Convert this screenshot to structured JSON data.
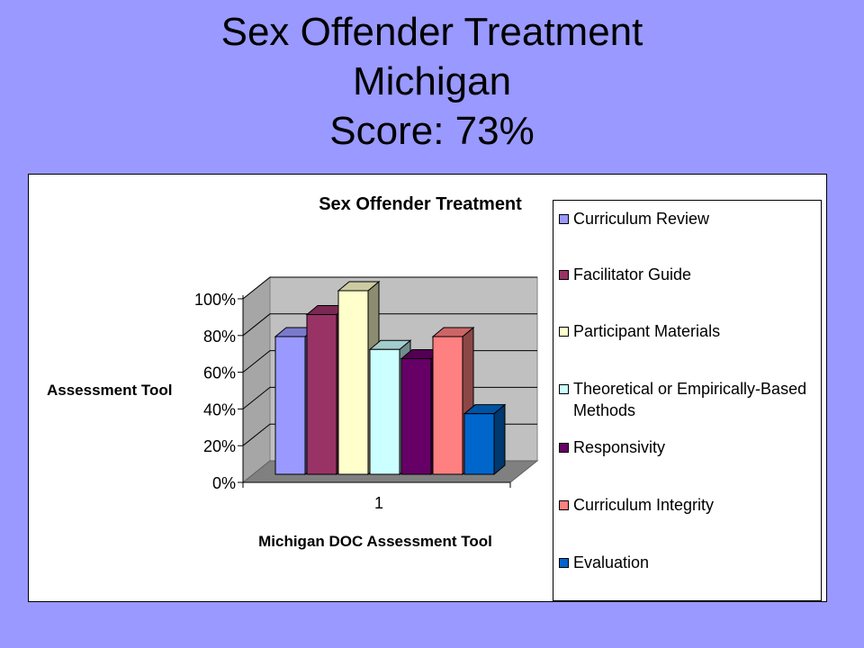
{
  "slide": {
    "title_line1": "Sex Offender Treatment",
    "title_line2": "Michigan",
    "title_line3": "Score: 73%"
  },
  "chart_data": {
    "type": "bar",
    "title": "Sex Offender Treatment",
    "xlabel": "Michigan DOC Assessment Tool",
    "ylabel": "Assessment Tool",
    "categories": [
      "1"
    ],
    "ylim": [
      0,
      1
    ],
    "yticks": [
      "0%",
      "20%",
      "40%",
      "60%",
      "80%",
      "100%"
    ],
    "grid": true,
    "three_d": true,
    "legend_position": "right",
    "series": [
      {
        "name": "Curriculum Review",
        "values": [
          0.75
        ],
        "color": "#9999ff"
      },
      {
        "name": "Facilitator Guide",
        "values": [
          0.87
        ],
        "color": "#993366"
      },
      {
        "name": "Participant Materials",
        "values": [
          1.0
        ],
        "color": "#ffffcc"
      },
      {
        "name": "Theoretical or Empirically-Based Methods",
        "values": [
          0.68
        ],
        "color": "#ccffff"
      },
      {
        "name": "Responsivity",
        "values": [
          0.63
        ],
        "color": "#660066"
      },
      {
        "name": "Curriculum Integrity",
        "values": [
          0.75
        ],
        "color": "#ff8080"
      },
      {
        "name": "Evaluation",
        "values": [
          0.33
        ],
        "color": "#0066cc"
      }
    ]
  }
}
